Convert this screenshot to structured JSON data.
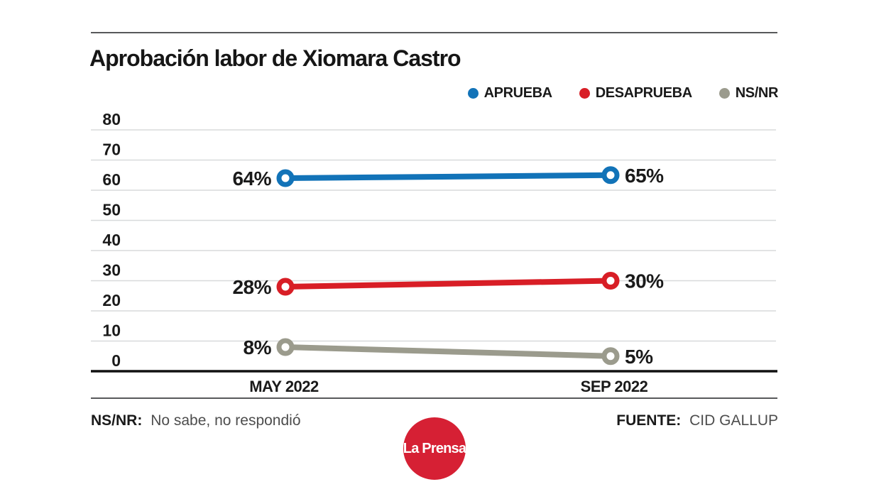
{
  "header": {
    "title": "Aprobación labor de Xiomara Castro"
  },
  "legend": [
    {
      "label": "APRUEBA",
      "color": "#1273b8"
    },
    {
      "label": "DESAPRUEBA",
      "color": "#d81e26"
    },
    {
      "label": "NS/NR",
      "color": "#9b9b8d"
    }
  ],
  "chart_data": {
    "type": "line",
    "title": "Aprobación labor de Xiomara Castro",
    "categories": [
      "MAY 2022",
      "SEP 2022"
    ],
    "series": [
      {
        "name": "APRUEBA",
        "color": "#1273b8",
        "values": [
          64,
          65
        ],
        "point_labels": [
          "64%",
          "65%"
        ]
      },
      {
        "name": "DESAPRUEBA",
        "color": "#d81e26",
        "values": [
          28,
          30
        ],
        "point_labels": [
          "28%",
          "30%"
        ]
      },
      {
        "name": "NS/NR",
        "color": "#9b9b8d",
        "values": [
          8,
          5
        ],
        "point_labels": [
          "8%",
          "5%"
        ]
      }
    ],
    "yticks": [
      0,
      10,
      20,
      30,
      40,
      50,
      60,
      70,
      80
    ],
    "ylim": [
      0,
      80
    ],
    "xlabel": "",
    "ylabel": "",
    "grid": true,
    "legend_position": "top-right",
    "colors": {
      "gridline": "#d8dadb",
      "axis": "#111111",
      "tick_text": "#1a1a1a",
      "label_text": "#1a1a1a"
    }
  },
  "footer": {
    "note_label": "NS/NR:",
    "note_text": "No sabe, no respondió",
    "source_label": "FUENTE:",
    "source_text": "CID GALLUP"
  },
  "logo": {
    "text": "La Prensa",
    "color": "#d62034"
  }
}
